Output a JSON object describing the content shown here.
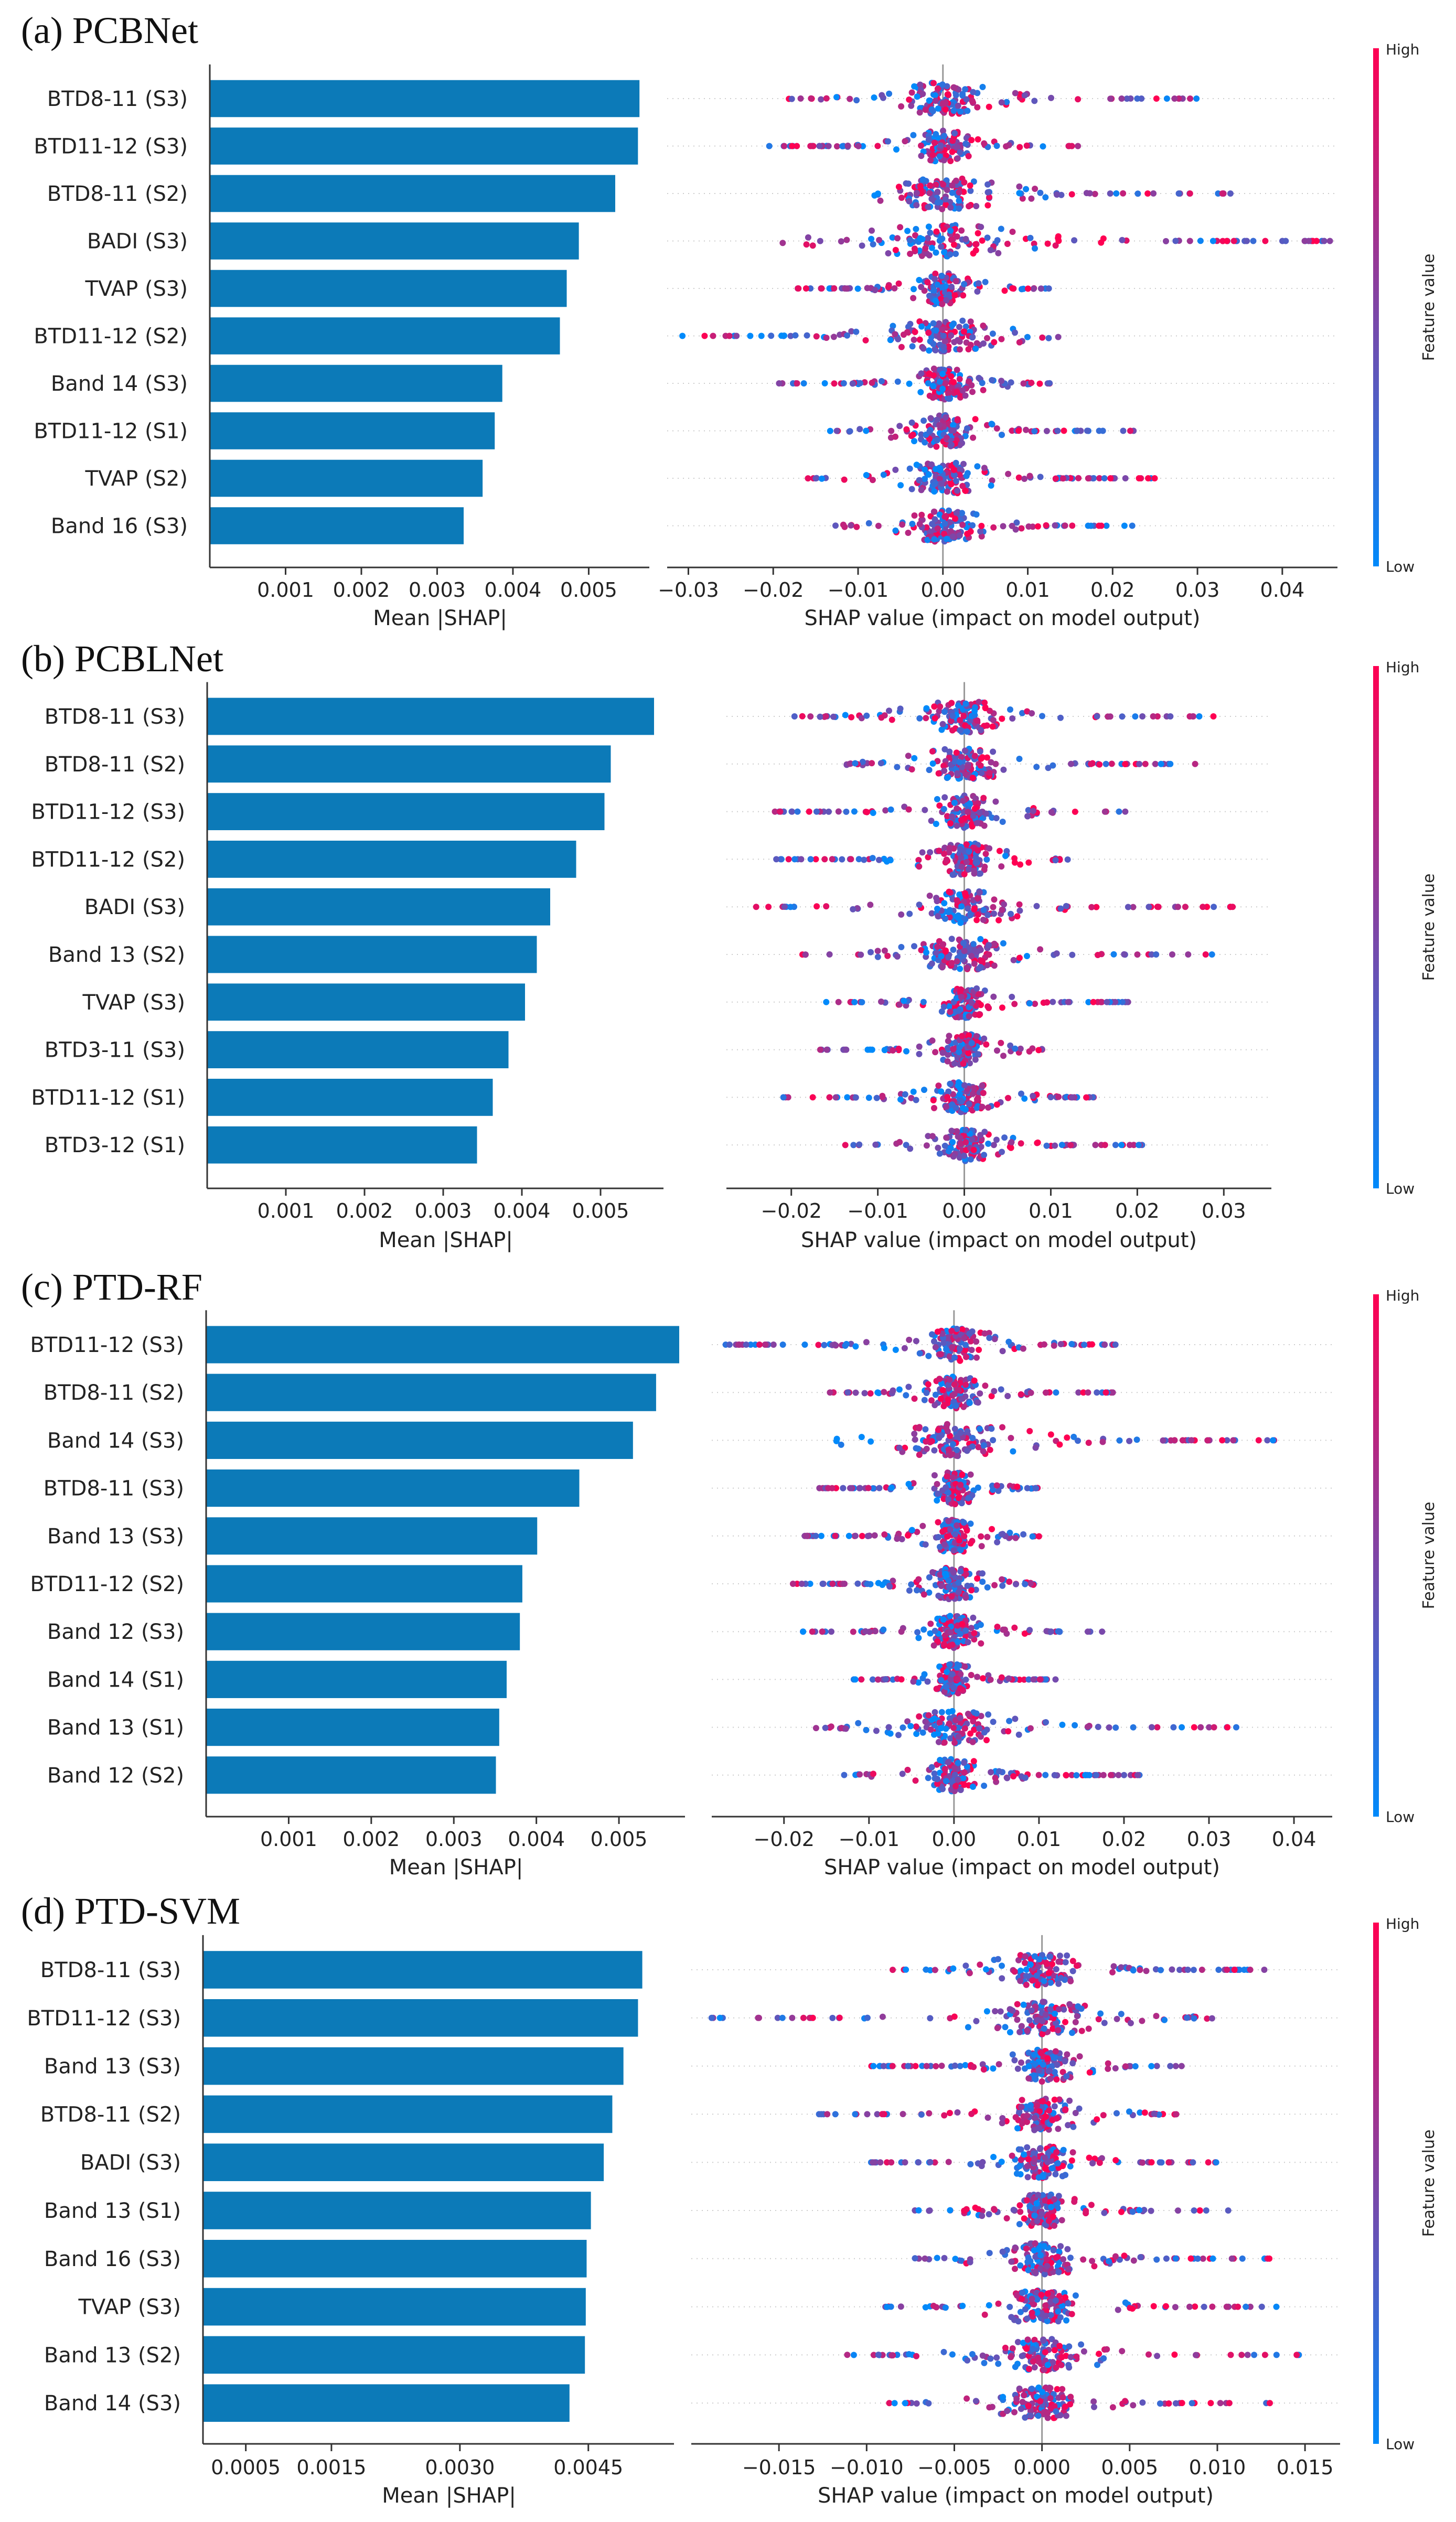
{
  "colors": {
    "bar": "#1f78b4",
    "bar_fill": "#0c7ab8",
    "low": "#008afb",
    "high": "#ff0052",
    "axis": "#333333",
    "grid": "#cccccc"
  },
  "chart_data": [
    {
      "type": "bar",
      "panel_title": "(a) PCBNet",
      "features": [
        "BTD8-11 (S3)",
        "BTD11-12 (S3)",
        "BTD8-11 (S2)",
        "BADI (S3)",
        "TVAP (S3)",
        "BTD11-12 (S2)",
        "Band 14 (S3)",
        "BTD11-12 (S1)",
        "TVAP (S2)",
        "Band 16 (S3)"
      ],
      "values": [
        0.00567,
        0.00565,
        0.00535,
        0.00487,
        0.00471,
        0.00462,
        0.00386,
        0.00376,
        0.0036,
        0.00335
      ],
      "xlabel": "Mean |SHAP|",
      "xticks": [
        0.001,
        0.002,
        0.003,
        0.004,
        0.005
      ],
      "xtick_labels": [
        "0.001",
        "0.002",
        "0.003",
        "0.004",
        "0.005"
      ],
      "xlim": [
        0,
        0.0058
      ],
      "beeswarm": {
        "xlabel": "SHAP value (impact on model output)",
        "xticks": [
          -0.03,
          -0.02,
          -0.01,
          0.0,
          0.01,
          0.02,
          0.03,
          0.04
        ],
        "xtick_labels": [
          "−0.03",
          "−0.02",
          "−0.01",
          "0.00",
          "0.01",
          "0.02",
          "0.03",
          "0.04"
        ],
        "xlim": [
          -0.0325,
          0.0465
        ],
        "ranges": [
          [
            -0.019,
            0.03
          ],
          [
            -0.021,
            0.016
          ],
          [
            -0.015,
            0.034
          ],
          [
            -0.019,
            0.046
          ],
          [
            -0.018,
            0.013
          ],
          [
            -0.032,
            0.016
          ],
          [
            -0.02,
            0.013
          ],
          [
            -0.015,
            0.023
          ],
          [
            -0.017,
            0.025
          ],
          [
            -0.013,
            0.024
          ]
        ],
        "colorbar_high": "High",
        "colorbar_low": "Low",
        "colorbar_label": "Feature value"
      }
    },
    {
      "type": "bar",
      "panel_title": "(b) PCBLNet",
      "features": [
        "BTD8-11 (S3)",
        "BTD8-11 (S2)",
        "BTD11-12 (S3)",
        "BTD11-12 (S2)",
        "BADI (S3)",
        "Band 13 (S2)",
        "TVAP (S3)",
        "BTD3-11 (S3)",
        "BTD11-12 (S1)",
        "BTD3-12 (S1)"
      ],
      "values": [
        0.00568,
        0.00513,
        0.00505,
        0.00469,
        0.00436,
        0.00419,
        0.00404,
        0.00383,
        0.00363,
        0.00343
      ],
      "xlabel": "Mean |SHAP|",
      "xticks": [
        0.001,
        0.002,
        0.003,
        0.004,
        0.005
      ],
      "xtick_labels": [
        "0.001",
        "0.002",
        "0.003",
        "0.004",
        "0.005"
      ],
      "xlim": [
        0,
        0.0058
      ],
      "beeswarm": {
        "xlabel": "SHAP value (impact on model output)",
        "xticks": [
          -0.02,
          -0.01,
          0.0,
          0.01,
          0.02,
          0.03
        ],
        "xtick_labels": [
          "−0.02",
          "−0.01",
          "0.00",
          "0.01",
          "0.02",
          "0.03"
        ],
        "xlim": [
          -0.0275,
          0.0355
        ],
        "ranges": [
          [
            -0.02,
            0.029
          ],
          [
            -0.016,
            0.028
          ],
          [
            -0.022,
            0.019
          ],
          [
            -0.022,
            0.013
          ],
          [
            -0.025,
            0.032
          ],
          [
            -0.019,
            0.029
          ],
          [
            -0.016,
            0.019
          ],
          [
            -0.017,
            0.01
          ],
          [
            -0.021,
            0.015
          ],
          [
            -0.014,
            0.021
          ]
        ],
        "colorbar_high": "High",
        "colorbar_low": "Low",
        "colorbar_label": "Feature value"
      }
    },
    {
      "type": "bar",
      "panel_title": "(c) PTD-RF",
      "features": [
        "BTD11-12 (S3)",
        "BTD8-11 (S2)",
        "Band 14 (S3)",
        "BTD8-11 (S3)",
        "Band 13 (S3)",
        "BTD11-12 (S2)",
        "Band 12 (S3)",
        "Band 14 (S1)",
        "Band 13 (S1)",
        "Band 12 (S2)"
      ],
      "values": [
        0.00573,
        0.00545,
        0.00517,
        0.00452,
        0.00401,
        0.00383,
        0.0038,
        0.00364,
        0.00355,
        0.00351
      ],
      "xlabel": "Mean |SHAP|",
      "xticks": [
        0.001,
        0.002,
        0.003,
        0.004,
        0.005
      ],
      "xtick_labels": [
        "0.001",
        "0.002",
        "0.003",
        "0.004",
        "0.005"
      ],
      "xlim": [
        0,
        0.0058
      ],
      "beeswarm": {
        "xlabel": "SHAP value (impact on model output)",
        "xticks": [
          -0.02,
          -0.01,
          0.0,
          0.01,
          0.02,
          0.03,
          0.04
        ],
        "xtick_labels": [
          "−0.02",
          "−0.01",
          "0.00",
          "0.01",
          "0.02",
          "0.03",
          "0.04"
        ],
        "xlim": [
          -0.0285,
          0.0445
        ],
        "ranges": [
          [
            -0.027,
            0.019
          ],
          [
            -0.015,
            0.02
          ],
          [
            -0.015,
            0.041
          ],
          [
            -0.016,
            0.01
          ],
          [
            -0.018,
            0.01
          ],
          [
            -0.019,
            0.011
          ],
          [
            -0.018,
            0.02
          ],
          [
            -0.013,
            0.012
          ],
          [
            -0.017,
            0.034
          ],
          [
            -0.013,
            0.022
          ]
        ],
        "colorbar_high": "High",
        "colorbar_low": "Low",
        "colorbar_label": "Feature value"
      }
    },
    {
      "type": "bar",
      "panel_title": "(d) PTD-SVM",
      "features": [
        "BTD8-11 (S3)",
        "BTD11-12 (S3)",
        "Band 13 (S3)",
        "BTD8-11 (S2)",
        "BADI (S3)",
        "Band 13 (S1)",
        "Band 16 (S3)",
        "TVAP (S3)",
        "Band 13 (S2)",
        "Band 14 (S3)"
      ],
      "values": [
        0.00513,
        0.00508,
        0.00491,
        0.00478,
        0.00468,
        0.00453,
        0.00448,
        0.00447,
        0.00446,
        0.00428
      ],
      "xlabel": "Mean |SHAP|",
      "xticks": [
        0.0005,
        0.0015,
        0.003,
        0.0045
      ],
      "xtick_labels": [
        "0.0005",
        "0.0015",
        "0.0030",
        "0.0045"
      ],
      "xlim": [
        0,
        0.0055
      ],
      "beeswarm": {
        "xlabel": "SHAP value (impact on model output)",
        "xticks": [
          -0.015,
          -0.01,
          -0.005,
          0.0,
          0.005,
          0.01,
          0.015
        ],
        "xtick_labels": [
          "−0.015",
          "−0.010",
          "−0.005",
          "0.000",
          "0.005",
          "0.010",
          "0.015"
        ],
        "xlim": [
          -0.02,
          0.017
        ],
        "ranges": [
          [
            -0.009,
            0.013
          ],
          [
            -0.019,
            0.01
          ],
          [
            -0.01,
            0.008
          ],
          [
            -0.013,
            0.008
          ],
          [
            -0.01,
            0.01
          ],
          [
            -0.008,
            0.011
          ],
          [
            -0.008,
            0.013
          ],
          [
            -0.009,
            0.014
          ],
          [
            -0.012,
            0.015
          ],
          [
            -0.009,
            0.013
          ]
        ],
        "colorbar_high": "High",
        "colorbar_low": "Low",
        "colorbar_label": "Feature value"
      }
    }
  ]
}
